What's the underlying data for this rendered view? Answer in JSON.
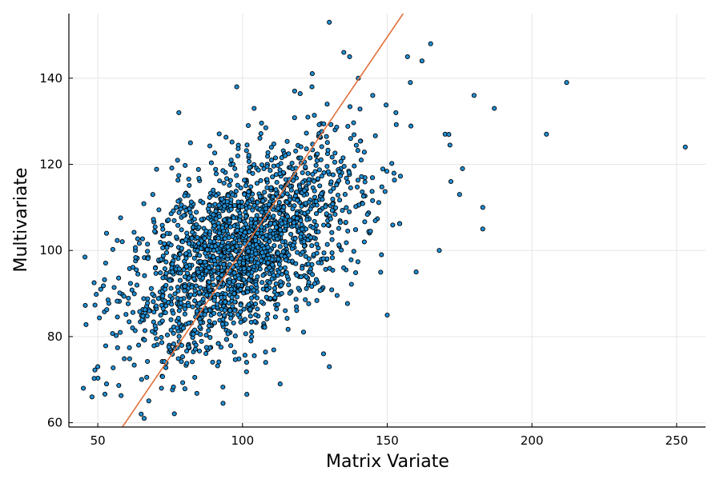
{
  "chart_data": {
    "type": "scatter",
    "title": "",
    "xlabel": "Matrix Variate",
    "ylabel": "Multivariate",
    "xlim": [
      40,
      260
    ],
    "ylim": [
      59,
      155
    ],
    "x_ticks": [
      50,
      100,
      150,
      200,
      250
    ],
    "y_ticks": [
      60,
      80,
      100,
      120,
      140
    ],
    "grid": true,
    "legend": "none",
    "point_color": "#1f8fd6",
    "line_color": "#e2703a",
    "points_total": 2000,
    "series": [
      {
        "type": "scatter",
        "points_listed": [
          [
            45,
            68
          ],
          [
            48,
            66
          ],
          [
            50,
            73
          ],
          [
            51,
            91
          ],
          [
            53,
            104
          ],
          [
            53,
            69
          ],
          [
            62,
            82
          ],
          [
            63,
            100
          ],
          [
            65,
            62
          ],
          [
            66,
            61
          ],
          [
            69,
            113
          ],
          [
            72,
            68
          ],
          [
            75,
            95
          ],
          [
            78,
            132
          ],
          [
            80,
            110
          ],
          [
            82,
            125
          ],
          [
            86,
            103
          ],
          [
            88,
            77
          ],
          [
            95,
            91
          ],
          [
            98,
            138
          ],
          [
            102,
            129
          ],
          [
            104,
            133
          ],
          [
            108,
            74
          ],
          [
            110,
            121
          ],
          [
            113,
            69
          ],
          [
            118,
            137
          ],
          [
            124,
            138
          ],
          [
            128,
            76
          ],
          [
            130,
            73
          ],
          [
            130,
            153
          ],
          [
            135,
            146
          ],
          [
            137,
            145
          ],
          [
            140,
            140
          ],
          [
            141,
            121
          ],
          [
            145,
            136
          ],
          [
            148,
            99
          ],
          [
            150,
            85
          ],
          [
            153,
            132
          ],
          [
            157,
            145
          ],
          [
            158,
            139
          ],
          [
            160,
            95
          ],
          [
            162,
            144
          ],
          [
            165,
            148
          ],
          [
            168,
            100
          ],
          [
            170,
            127
          ],
          [
            172,
            116
          ],
          [
            175,
            113
          ],
          [
            176,
            119
          ],
          [
            180,
            136
          ],
          [
            183,
            105
          ],
          [
            183,
            110
          ],
          [
            187,
            133
          ],
          [
            205,
            127
          ],
          [
            212,
            139
          ],
          [
            253,
            124
          ]
        ],
        "cloud": {
          "center": [
            100,
            100
          ],
          "sd": [
            20,
            12
          ],
          "correlation": 0.55
        }
      },
      {
        "type": "line",
        "points": [
          [
            58.5,
            59
          ],
          [
            155.5,
            155
          ]
        ]
      }
    ]
  }
}
